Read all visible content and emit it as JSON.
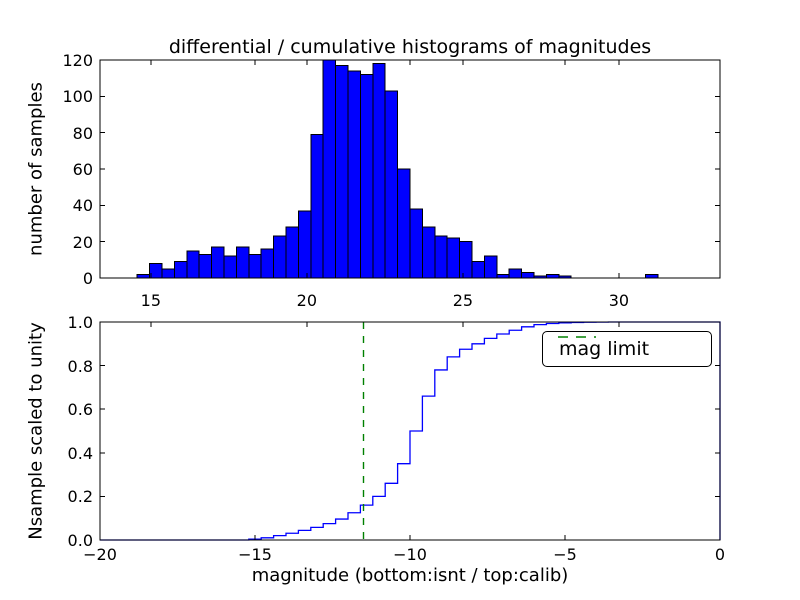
{
  "figure": {
    "title": "differential / cumulative histograms of magnitudes",
    "colors": {
      "background": "#ffffff",
      "bar_fill": "#0000ff",
      "bar_edge": "#000000",
      "step_line": "#0000ff",
      "mag_limit_line": "#008000",
      "axes_edge": "#000000",
      "text": "#000000"
    }
  },
  "chart_data": [
    {
      "id": "top",
      "type": "bar",
      "description": "differential histogram of calib magnitudes",
      "ylabel": "number of samples",
      "xlim": [
        13.37,
        33.24
      ],
      "ylim": [
        0,
        120
      ],
      "grid": false,
      "xticks": {
        "values": [
          15,
          20,
          25,
          30
        ],
        "labels": [
          "15",
          "20",
          "25",
          "30"
        ]
      },
      "yticks": {
        "values": [
          0,
          20,
          40,
          60,
          80,
          100,
          120
        ],
        "labels": [
          "0",
          "20",
          "40",
          "60",
          "80",
          "100",
          "120"
        ]
      },
      "bins": {
        "start": 13.37,
        "width": 0.3974,
        "count": 50
      },
      "counts": [
        0,
        0,
        0,
        2,
        8,
        5,
        9,
        15,
        13,
        17,
        12,
        17,
        13,
        16,
        23,
        28,
        37,
        79,
        120,
        117,
        114,
        112,
        118,
        103,
        60,
        38,
        28,
        23,
        22,
        20,
        9,
        12,
        2,
        5,
        3,
        1,
        2,
        1,
        0,
        0,
        0,
        0,
        0,
        0,
        2,
        0,
        0,
        0,
        0,
        0
      ]
    },
    {
      "id": "bottom",
      "type": "line",
      "description": "cumulative step histogram of isnt magnitudes scaled to unity",
      "xlabel": "magnitude (bottom:isnt / top:calib)",
      "ylabel": "Nsample scaled to unity",
      "xlim": [
        -20,
        0
      ],
      "ylim": [
        0.0,
        1.0
      ],
      "grid": false,
      "xticks": {
        "values": [
          -20,
          -15,
          -10,
          -5,
          0
        ],
        "labels": [
          "−20",
          "−15",
          "−10",
          "−5",
          "0"
        ]
      },
      "yticks": {
        "values": [
          0.0,
          0.2,
          0.4,
          0.6,
          0.8,
          1.0
        ],
        "labels": [
          "0.0",
          "0.2",
          "0.4",
          "0.6",
          "0.8",
          "1.0"
        ]
      },
      "bins": {
        "start": -20,
        "width": 0.4,
        "count": 50
      },
      "cumulative": [
        0,
        0,
        0,
        0,
        0,
        0,
        0,
        0,
        0,
        0,
        0,
        0,
        0.004,
        0.01,
        0.02,
        0.031,
        0.044,
        0.058,
        0.075,
        0.096,
        0.125,
        0.16,
        0.2,
        0.26,
        0.35,
        0.5,
        0.66,
        0.78,
        0.84,
        0.875,
        0.9,
        0.925,
        0.945,
        0.962,
        0.978,
        0.988,
        0.993,
        0.996,
        0.998,
        0.999,
        0.9995,
        1,
        1,
        1,
        1,
        1,
        1,
        1,
        1,
        1
      ],
      "mag_limit": -11.5,
      "legend": {
        "label": "mag limit",
        "position": "upper right"
      }
    }
  ]
}
